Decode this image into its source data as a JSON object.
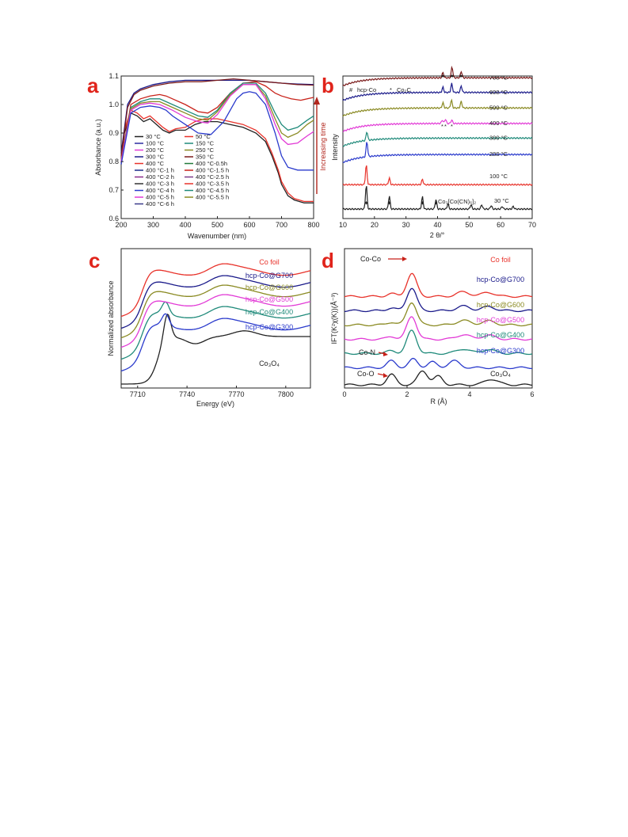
{
  "chart_data": [
    {
      "panel": "a",
      "type": "line",
      "xlabel": "Wavenumber (nm)",
      "ylabel": "Absorbance (a.u.)",
      "xlim": [
        200,
        800
      ],
      "ylim": [
        0.6,
        1.1
      ],
      "xticks": [
        "200",
        "300",
        "400",
        "500",
        "600",
        "700",
        "800"
      ],
      "yticks": [
        "0.6",
        "0.7",
        "0.8",
        "0.9",
        "1.0",
        "1.1"
      ],
      "annotation": "Increasing time",
      "legend_position": "lower-left",
      "legend": [
        {
          "name": "30 °C",
          "color": "#222222"
        },
        {
          "name": "50 °C",
          "color": "#e8322a"
        },
        {
          "name": "100 °C",
          "color": "#2a2aa0"
        },
        {
          "name": "150 °C",
          "color": "#1f8a7a"
        },
        {
          "name": "200 °C",
          "color": "#e23ad6"
        },
        {
          "name": "250 °C",
          "color": "#8a8a22"
        },
        {
          "name": "300 °C",
          "color": "#1a1a8a"
        },
        {
          "name": "350 °C",
          "color": "#7a1a1a"
        },
        {
          "name": "400 °C",
          "color": "#e8322a"
        },
        {
          "name": "400 °C-0.5h",
          "color": "#227a3a"
        },
        {
          "name": "400 °C-1 h",
          "color": "#1a2a8a"
        },
        {
          "name": "400 °C-1.5 h",
          "color": "#c8221a"
        },
        {
          "name": "400 °C-2 h",
          "color": "#8a2a8a"
        },
        {
          "name": "400 °C-2.5 h",
          "color": "#7a3a8a"
        },
        {
          "name": "400 °C-3 h",
          "color": "#333333"
        },
        {
          "name": "400 °C-3.5 h",
          "color": "#e8322a"
        },
        {
          "name": "400 °C-4 h",
          "color": "#2a3acc"
        },
        {
          "name": "400 °C-4.5 h",
          "color": "#1f8a7a"
        },
        {
          "name": "400 °C-5 h",
          "color": "#e23ad6"
        },
        {
          "name": "400 °C-5.5 h",
          "color": "#8a8a22"
        },
        {
          "name": "400 °C-6 h",
          "color": "#3a3a8a"
        }
      ],
      "series": [
        {
          "color": "#222222",
          "x": [
            200,
            210,
            230,
            250,
            270,
            290,
            310,
            330,
            350,
            370,
            400,
            430,
            460,
            500,
            540,
            580,
            620,
            650,
            670,
            690,
            700,
            720,
            740,
            770,
            800
          ],
          "values": [
            0.79,
            0.9,
            0.97,
            0.96,
            0.94,
            0.95,
            0.93,
            0.91,
            0.9,
            0.91,
            0.91,
            0.93,
            0.94,
            0.94,
            0.93,
            0.92,
            0.9,
            0.87,
            0.82,
            0.76,
            0.72,
            0.68,
            0.665,
            0.655,
            0.655
          ]
        },
        {
          "color": "#e8322a",
          "x": [
            200,
            210,
            230,
            250,
            270,
            290,
            310,
            330,
            350,
            370,
            400,
            430,
            460,
            500,
            540,
            580,
            620,
            650,
            670,
            690,
            700,
            720,
            740,
            770,
            800
          ],
          "values": [
            0.8,
            0.91,
            0.98,
            0.97,
            0.95,
            0.96,
            0.94,
            0.92,
            0.905,
            0.915,
            0.92,
            0.94,
            0.95,
            0.95,
            0.94,
            0.93,
            0.91,
            0.88,
            0.83,
            0.77,
            0.73,
            0.69,
            0.67,
            0.66,
            0.66
          ]
        },
        {
          "color": "#1a1a8a",
          "x": [
            200,
            220,
            240,
            260,
            300,
            350,
            400,
            450,
            500,
            550,
            600,
            650,
            700,
            750,
            800
          ],
          "values": [
            0.83,
            1.0,
            1.04,
            1.055,
            1.07,
            1.08,
            1.085,
            1.085,
            1.085,
            1.085,
            1.085,
            1.08,
            1.075,
            1.072,
            1.07
          ]
        },
        {
          "color": "#7a1a1a",
          "x": [
            200,
            220,
            240,
            260,
            300,
            350,
            400,
            450,
            500,
            550,
            600,
            650,
            700,
            750,
            800
          ],
          "values": [
            0.82,
            0.99,
            1.035,
            1.05,
            1.065,
            1.075,
            1.08,
            1.08,
            1.085,
            1.09,
            1.085,
            1.08,
            1.075,
            1.07,
            1.068
          ]
        },
        {
          "color": "#c8221a",
          "x": [
            200,
            230,
            260,
            290,
            320,
            340,
            360,
            400,
            440,
            470,
            500,
            540,
            580,
            620,
            650,
            680,
            700,
            730,
            760,
            800
          ],
          "values": [
            0.8,
            1.0,
            1.02,
            1.03,
            1.035,
            1.03,
            1.02,
            1.0,
            0.975,
            0.97,
            0.99,
            1.04,
            1.075,
            1.08,
            1.065,
            1.04,
            1.03,
            1.02,
            1.015,
            1.025
          ]
        },
        {
          "color": "#1f8a7a",
          "x": [
            200,
            230,
            260,
            290,
            320,
            340,
            360,
            400,
            440,
            470,
            500,
            540,
            580,
            620,
            650,
            680,
            700,
            720,
            750,
            780,
            800
          ],
          "values": [
            0.8,
            0.99,
            1.01,
            1.02,
            1.02,
            1.01,
            1.0,
            0.98,
            0.96,
            0.955,
            0.98,
            1.04,
            1.075,
            1.075,
            1.04,
            0.97,
            0.93,
            0.91,
            0.92,
            0.945,
            0.96
          ]
        },
        {
          "color": "#8a8a22",
          "x": [
            200,
            230,
            260,
            290,
            320,
            340,
            360,
            400,
            440,
            470,
            500,
            540,
            580,
            620,
            650,
            680,
            700,
            720,
            750,
            780,
            800
          ],
          "values": [
            0.8,
            0.985,
            1.005,
            1.01,
            1.01,
            1.0,
            0.99,
            0.97,
            0.95,
            0.945,
            0.975,
            1.035,
            1.07,
            1.07,
            1.03,
            0.95,
            0.9,
            0.885,
            0.9,
            0.93,
            0.945
          ]
        },
        {
          "color": "#e23ad6",
          "x": [
            200,
            230,
            260,
            290,
            320,
            340,
            360,
            400,
            440,
            470,
            500,
            540,
            580,
            620,
            650,
            680,
            700,
            720,
            750,
            780,
            800
          ],
          "values": [
            0.8,
            0.98,
            1.0,
            1.005,
            1.0,
            0.99,
            0.98,
            0.955,
            0.94,
            0.935,
            0.965,
            1.03,
            1.07,
            1.07,
            1.02,
            0.93,
            0.88,
            0.86,
            0.865,
            0.89,
            0.905
          ]
        },
        {
          "color": "#2a3acc",
          "x": [
            200,
            230,
            260,
            290,
            320,
            340,
            360,
            400,
            440,
            480,
            520,
            560,
            580,
            600,
            620,
            650,
            680,
            700,
            720,
            750,
            780,
            800
          ],
          "values": [
            0.79,
            0.97,
            0.99,
            0.995,
            0.99,
            0.98,
            0.96,
            0.93,
            0.9,
            0.895,
            0.94,
            1.02,
            1.04,
            1.045,
            1.04,
            1.0,
            0.9,
            0.82,
            0.78,
            0.77,
            0.77,
            0.77
          ]
        }
      ]
    },
    {
      "panel": "b",
      "type": "line",
      "xlabel": "2 θ/°",
      "ylabel": "Intensity",
      "xlim": [
        10,
        70
      ],
      "xticks": [
        "10",
        "20",
        "30",
        "40",
        "50",
        "60",
        "70"
      ],
      "legend_position": "top-left",
      "legend": [
        {
          "marker": "#",
          "name": "hcp-Co"
        },
        {
          "marker": "*",
          "name": "Co₂C"
        }
      ],
      "annotation_compound": "Co₃[Co(CN)₆]₂",
      "series": [
        {
          "name": "30 °C",
          "color": "#222222",
          "baseline": 0.0,
          "peaks": [
            [
              17.4,
              0.55
            ],
            [
              24.7,
              0.3
            ],
            [
              35.2,
              0.28
            ],
            [
              39.5,
              0.22
            ],
            [
              43.3,
              0.12
            ],
            [
              50.6,
              0.1
            ],
            [
              54.0,
              0.1
            ],
            [
              57.0,
              0.08
            ],
            [
              60.5,
              0.06
            ],
            [
              64.0,
              0.06
            ]
          ]
        },
        {
          "name": "100 °C",
          "color": "#e8322a",
          "baseline": 0.55,
          "peaks": [
            [
              17.4,
              0.45
            ],
            [
              24.7,
              0.15
            ],
            [
              35.2,
              0.12
            ]
          ]
        },
        {
          "name": "200 °C",
          "color": "#2a3acc",
          "baseline": 1.05,
          "peaks": [
            [
              17.6,
              0.35
            ]
          ]
        },
        {
          "name": "300 °C",
          "color": "#1f8a7a",
          "baseline": 1.42,
          "peaks": [
            [
              17.6,
              0.2
            ]
          ]
        },
        {
          "name": "400 °C",
          "color": "#e23ad6",
          "baseline": 1.75,
          "peaks": [
            [
              41.5,
              0.08
            ],
            [
              42.5,
              0.1
            ],
            [
              44.5,
              0.08
            ]
          ]
        },
        {
          "name": "500 °C",
          "color": "#8a8a22",
          "baseline": 2.1,
          "peaks": [
            [
              41.7,
              0.12
            ],
            [
              44.4,
              0.18
            ],
            [
              47.5,
              0.15
            ]
          ]
        },
        {
          "name": "600 °C",
          "color": "#1a1a8a",
          "baseline": 2.45,
          "peaks": [
            [
              41.7,
              0.12
            ],
            [
              44.5,
              0.2
            ],
            [
              47.5,
              0.15
            ]
          ]
        },
        {
          "name": "700 °C",
          "color": "#7a1a1a",
          "baseline": 2.78,
          "peaks": [
            [
              41.7,
              0.12
            ],
            [
              44.6,
              0.25
            ],
            [
              47.5,
              0.15
            ]
          ]
        }
      ]
    },
    {
      "panel": "c",
      "type": "line",
      "xlabel": "Energy (eV)",
      "ylabel": "Normalized absorbance",
      "xlim": [
        7700,
        7815
      ],
      "xticks": [
        "7710",
        "7740",
        "7770",
        "7800"
      ],
      "series": [
        {
          "name": "Co₃O₄",
          "color": "#222222",
          "offset": 0.0
        },
        {
          "name": "hcp-Co@G300",
          "color": "#2a3acc",
          "offset": 0.3
        },
        {
          "name": "hcp-Co@G400",
          "color": "#1f8a7a",
          "offset": 0.55
        },
        {
          "name": "hcp-Co@G500",
          "color": "#e23ad6",
          "offset": 0.8
        },
        {
          "name": "hcp-Co@G600",
          "color": "#8a8a22",
          "offset": 1.0
        },
        {
          "name": "hcp-Co@G700",
          "color": "#1a1a8a",
          "offset": 1.2
        },
        {
          "name": "Co foil",
          "color": "#e8322a",
          "offset": 1.45
        }
      ]
    },
    {
      "panel": "d",
      "type": "line",
      "xlabel": "R (Å)",
      "ylabel": "IFT(K²χ(K))(Å⁻³)",
      "xlim": [
        0,
        6
      ],
      "xticks": [
        "0",
        "2",
        "4",
        "6"
      ],
      "annotations": [
        "Co-Co",
        "Co-N",
        "Co-O"
      ],
      "series": [
        {
          "name": "Co₃O₄",
          "color": "#222222",
          "offset": 0.0
        },
        {
          "name": "hcp-Co@G300",
          "color": "#2a3acc",
          "offset": 0.3
        },
        {
          "name": "hcp-Co@G400",
          "color": "#1f8a7a",
          "offset": 0.55
        },
        {
          "name": "hcp-Co@G500",
          "color": "#e23ad6",
          "offset": 0.8
        },
        {
          "name": "hcp-Co@G600",
          "color": "#8a8a22",
          "offset": 1.05
        },
        {
          "name": "hcp-Co@G700",
          "color": "#1a1a8a",
          "offset": 1.3
        },
        {
          "name": "Co foil",
          "color": "#e8322a",
          "offset": 1.55
        }
      ]
    }
  ],
  "panel_labels": [
    "a",
    "b",
    "c",
    "d"
  ]
}
